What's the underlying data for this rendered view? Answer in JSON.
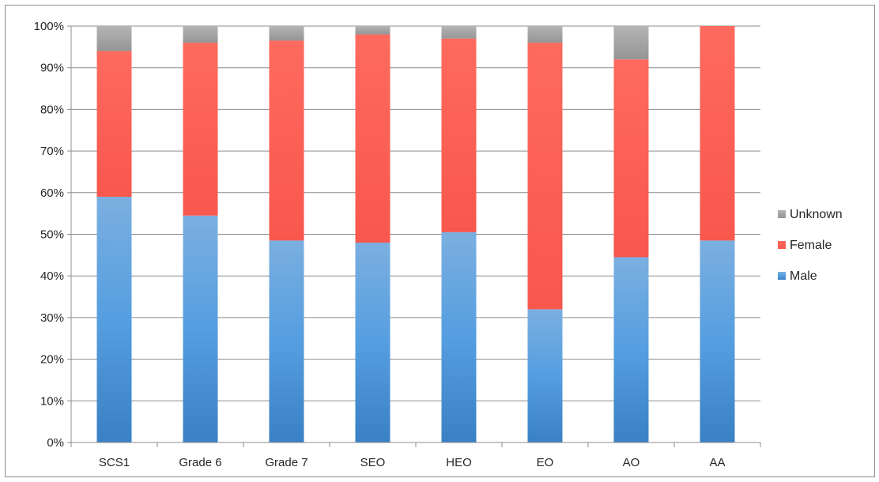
{
  "chart_data": {
    "type": "bar",
    "stacked": true,
    "percent": true,
    "categories": [
      "SCS1",
      "Grade 6",
      "Grade 7",
      "SEO",
      "HEO",
      "EO",
      "AO",
      "AA"
    ],
    "series": [
      {
        "name": "Male",
        "color": "#5b9bd5",
        "values": [
          59,
          54.5,
          48.5,
          48,
          50.5,
          32,
          44.5,
          48.5
        ]
      },
      {
        "name": "Female",
        "color": "#ff6157",
        "values": [
          35,
          41.5,
          48,
          50,
          46.5,
          64,
          47.5,
          51.5
        ]
      },
      {
        "name": "Unknown",
        "color": "#a6a6a6",
        "values": [
          6,
          4,
          3.5,
          2,
          3,
          4,
          8,
          0
        ]
      }
    ],
    "y_ticks": [
      "0%",
      "10%",
      "20%",
      "30%",
      "40%",
      "50%",
      "60%",
      "70%",
      "80%",
      "90%",
      "100%"
    ],
    "ylim": [
      0,
      100
    ],
    "grid": true,
    "legend_position": "right",
    "legend_order": [
      "Unknown",
      "Female",
      "Male"
    ]
  }
}
